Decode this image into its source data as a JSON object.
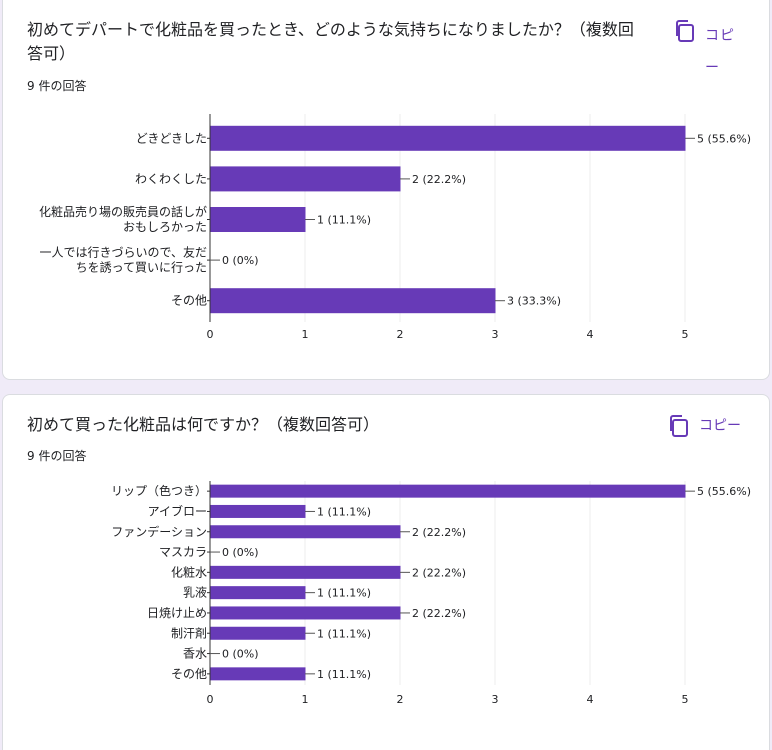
{
  "questions": [
    {
      "title": "初めてデパートで化粧品を買ったとき、どのような気持ちになりましたか？（複数回答可）",
      "count_label": "9 件の回答",
      "copy_label": "コピー",
      "chart_data": {
        "type": "bar",
        "orientation": "horizontal",
        "categories": [
          [
            "どきどきした"
          ],
          [
            "わくわくした"
          ],
          [
            "化粧品売り場の販売員の話しが",
            "おもしろかった"
          ],
          [
            "一人では行きづらいので、友だ",
            "ちを誘って買いに行った"
          ],
          [
            "その他"
          ]
        ],
        "values": [
          5,
          2,
          1,
          0,
          3
        ],
        "value_labels": [
          "5 (55.6%)",
          "2 (22.2%)",
          "1 (11.1%)",
          "0 (0%)",
          "3 (33.3%)"
        ],
        "xlim": [
          0,
          5
        ],
        "xticks": [
          "0",
          "1",
          "2",
          "3",
          "4",
          "5"
        ],
        "bar_color": "#673ab7",
        "grid": true
      }
    },
    {
      "title": "初めて買った化粧品は何ですか？（複数回答可）",
      "count_label": "9 件の回答",
      "copy_label": "コピー",
      "chart_data": {
        "type": "bar",
        "orientation": "horizontal",
        "categories": [
          [
            "リップ（色つき）"
          ],
          [
            "アイブロー"
          ],
          [
            "ファンデーション"
          ],
          [
            "マスカラ"
          ],
          [
            "化粧水"
          ],
          [
            "乳液"
          ],
          [
            "日焼け止め"
          ],
          [
            "制汗剤"
          ],
          [
            "香水"
          ],
          [
            "その他"
          ]
        ],
        "values": [
          5,
          1,
          2,
          0,
          2,
          1,
          2,
          1,
          0,
          1
        ],
        "value_labels": [
          "5 (55.6%)",
          "1 (11.1%)",
          "2 (22.2%)",
          "0 (0%)",
          "2 (22.2%)",
          "1 (11.1%)",
          "2 (22.2%)",
          "1 (11.1%)",
          "0 (0%)",
          "1 (11.1%)"
        ],
        "xlim": [
          0,
          5
        ],
        "xticks": [
          "0",
          "1",
          "2",
          "3",
          "4",
          "5"
        ],
        "bar_color": "#673ab7",
        "grid": true
      }
    }
  ]
}
